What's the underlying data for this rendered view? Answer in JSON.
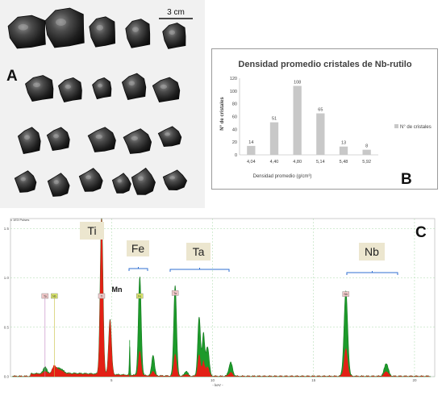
{
  "panel_labels": {
    "a": "A",
    "b": "B",
    "c": "C"
  },
  "scale_bar": {
    "label": "3 cm"
  },
  "chart_data": [
    {
      "type": "bar",
      "title": "Densidad promedio cristales de Nb-rutilo",
      "xlabel": "Densidad promedio (g/cm³)",
      "ylabel": "N° de cristales",
      "categories": [
        "4,04",
        "4,40",
        "4,80",
        "5,14",
        "5,48",
        "5,92"
      ],
      "series": [
        {
          "name": "N° de cristales",
          "values": [
            14,
            51,
            108,
            65,
            13,
            8
          ]
        }
      ],
      "data_labels": [
        "14",
        "51",
        "108",
        "65",
        "13",
        "8"
      ],
      "ylim": [
        0,
        120
      ],
      "yticks": [
        "0",
        "20",
        "40",
        "60",
        "80",
        "100",
        "120"
      ],
      "legend": "right",
      "grid": false,
      "colors": {
        "bar": "#c8c8c8",
        "text": "#404040"
      }
    },
    {
      "type": "line",
      "header": "x 1E3 Pulses",
      "xlabel": "- keV -",
      "xticks": [
        "5",
        "10",
        "15",
        "20"
      ],
      "yticks": [
        "0.0",
        "0.5",
        "1.0",
        "1.5"
      ],
      "xlim": [
        0,
        21
      ],
      "ylim": [
        0,
        1.6
      ],
      "element_labels": [
        "Ti",
        "Fe",
        "Ta",
        "Nb"
      ],
      "mn_label": "Mn",
      "marker_labels": [
        "Ta",
        "Nb",
        "Ti",
        "Fe",
        "Ta",
        "Nb"
      ],
      "peaks_keV": {
        "Ti": [
          4.51,
          4.93
        ],
        "Fe": [
          6.4,
          7.06
        ],
        "Ta": [
          1.71,
          8.15,
          9.34,
          9.66,
          10.9
        ],
        "Nb": [
          2.17,
          16.6,
          18.6
        ],
        "Mn": [
          5.9
        ]
      },
      "colors": {
        "green": "#1c9a2a",
        "red": "#e32015",
        "bracket": "#2f6fd0",
        "label_box": "#ece6cf"
      }
    }
  ]
}
